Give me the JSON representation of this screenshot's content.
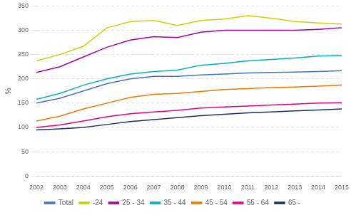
{
  "chart_data": {
    "type": "line",
    "x": [
      2002,
      2003,
      2004,
      2005,
      2006,
      2007,
      2008,
      2009,
      2010,
      2011,
      2012,
      2013,
      2014,
      2015
    ],
    "series": [
      {
        "name": "Total",
        "color": "#4472c4",
        "values": [
          150,
          160,
          175,
          190,
          200,
          205,
          205,
          208,
          210,
          212,
          213,
          214,
          215,
          217
        ]
      },
      {
        "name": "-24",
        "color": "#c8d400",
        "values": [
          237,
          250,
          267,
          305,
          318,
          320,
          310,
          320,
          323,
          330,
          325,
          318,
          315,
          313
        ]
      },
      {
        "name": "25 - 34",
        "color": "#aa00aa",
        "values": [
          213,
          225,
          245,
          265,
          280,
          287,
          285,
          296,
          300,
          300,
          300,
          300,
          302,
          305
        ]
      },
      {
        "name": "35 - 44",
        "color": "#00b0c0",
        "values": [
          158,
          170,
          187,
          200,
          210,
          215,
          218,
          228,
          232,
          237,
          240,
          243,
          247,
          248
        ]
      },
      {
        "name": "45 - 54",
        "color": "#f07800",
        "values": [
          113,
          123,
          138,
          150,
          162,
          168,
          170,
          174,
          178,
          180,
          182,
          183,
          185,
          187
        ]
      },
      {
        "name": "55 - 64",
        "color": "#e8007a",
        "values": [
          100,
          105,
          113,
          122,
          128,
          132,
          135,
          140,
          142,
          144,
          146,
          148,
          150,
          151
        ]
      },
      {
        "name": "65 -",
        "color": "#1a3060",
        "values": [
          95,
          97,
          100,
          106,
          112,
          116,
          120,
          124,
          127,
          130,
          132,
          134,
          136,
          138
        ]
      }
    ],
    "xlim": [
      2002,
      2015
    ],
    "xticks": [
      2002,
      2003,
      2004,
      2005,
      2006,
      2007,
      2008,
      2009,
      2010,
      2011,
      2012,
      2013,
      2014,
      2015
    ],
    "ylim": [
      0,
      350
    ],
    "yticks": [
      0,
      50,
      100,
      150,
      200,
      250,
      300,
      350
    ],
    "ylabel": "%",
    "grid": true,
    "legend": "bottom"
  }
}
